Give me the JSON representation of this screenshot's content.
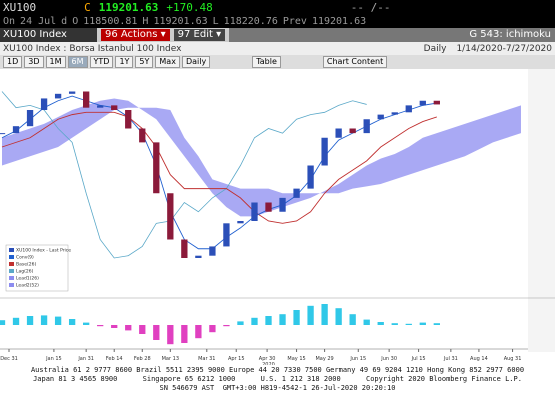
{
  "header": {
    "ticker": "XU100",
    "c_label": "C",
    "last": "119201.63",
    "change": "+170.48",
    "bidask": "-- /--",
    "row2": [
      "On",
      "24 Jul",
      "d",
      "O",
      "118500.81",
      "H",
      "119201.63",
      "L",
      "118220.76",
      "Prev",
      "119201.63"
    ]
  },
  "toolbar": {
    "security": "XU100 Index",
    "actions_num": "96",
    "actions": "Actions",
    "edit_num": "97",
    "edit": "Edit",
    "page": "G 543: ichimoku"
  },
  "subtitle": {
    "name": "XU100 Index : Borsa Istanbul 100 Index",
    "frequency": "Daily",
    "range": "1/14/2020-7/27/2020"
  },
  "buttons": [
    "1D",
    "3D",
    "1M",
    "6M",
    "YTD",
    "1Y",
    "5Y",
    "Max"
  ],
  "selected_button": 3,
  "period": "Daily",
  "table": "Table",
  "chart_content": "Chart Content",
  "chart_data": {
    "type": "candlestick",
    "xlim": [
      0,
      37.5
    ],
    "ylim": [
      78000,
      126000
    ],
    "xticks": [
      {
        "value": 0.5,
        "label": "Dec 31"
      },
      {
        "value": 3.7,
        "label": "Jan 15"
      },
      {
        "value": 6,
        "label": "Jan 31"
      },
      {
        "value": 8,
        "label": "Feb 14"
      },
      {
        "value": 10,
        "label": "Feb 28"
      },
      {
        "value": 12,
        "label": "Mar 13"
      },
      {
        "value": 14.6,
        "label": "Mar 31"
      },
      {
        "value": 16.7,
        "label": "Apr 15"
      },
      {
        "value": 18.9,
        "label": "Apr 30"
      },
      {
        "value": 21,
        "label": "May 15"
      },
      {
        "value": 23,
        "label": "May 29"
      },
      {
        "value": 25.4,
        "label": "Jun 15"
      },
      {
        "value": 27.6,
        "label": "Jun 30"
      },
      {
        "value": 29.7,
        "label": "Jul 15"
      },
      {
        "value": 32,
        "label": "Jul 31"
      },
      {
        "value": 34,
        "label": "Aug 14"
      },
      {
        "value": 36.4,
        "label": "Aug 31"
      }
    ],
    "year_label": "2020",
    "close": [
      113000,
      114500,
      118000,
      120500,
      121500,
      122000,
      118500,
      119000,
      118000,
      114000,
      111000,
      100000,
      90000,
      86000,
      86500,
      88500,
      93500,
      94000,
      98000,
      96000,
      99000,
      101000,
      106000,
      112000,
      114000,
      113000,
      116000,
      117000,
      117500,
      119000,
      120000,
      119201.63
    ],
    "up_color": "#2b4fb8",
    "down_color": "#8b1a3a",
    "legend": [
      "XU100 Index - Last Price",
      "Conv(9)",
      "Base(26)",
      "Lag(26)",
      "Lead1(26)",
      "Lead2(52)"
    ],
    "conv": {
      "color": "#2060d0",
      "values": [
        112000,
        113500,
        116000,
        118500,
        120000,
        121000,
        120000,
        119000,
        118500,
        116500,
        113000,
        106000,
        96000,
        90000,
        88000,
        88000,
        90500,
        92500,
        95000,
        96500,
        97500,
        99500,
        103000,
        108000,
        111500,
        113000,
        114500,
        116000,
        117000,
        118000,
        119000,
        119500
      ]
    },
    "base": {
      "color": "#c03030",
      "values": [
        110000,
        111000,
        112000,
        114000,
        116000,
        117000,
        117500,
        117500,
        117500,
        116500,
        114000,
        110000,
        104000,
        101000,
        101000,
        101000,
        101000,
        99000,
        96000,
        94000,
        93500,
        94000,
        96000,
        100000,
        103000,
        105000,
        107000,
        110000,
        112000,
        114000,
        115500,
        116500
      ]
    },
    "lag": {
      "color": "#5aa8c8",
      "values": [
        122000,
        118500,
        119000,
        118000,
        114000,
        111000,
        100000,
        90000,
        86000,
        86500,
        88500,
        93500,
        94000,
        98000,
        96000,
        99000,
        101000,
        106000,
        112000,
        114000,
        113000,
        116000,
        117000,
        117500,
        119000,
        120000,
        119201.63
      ]
    },
    "cloud_color": "#8c8cf0",
    "lead1": [
      112000,
      113000,
      114000,
      115000,
      116500,
      118000,
      119000,
      120000,
      120500,
      120000,
      118000,
      116000,
      112000,
      108000,
      104000,
      100000,
      97000,
      95000,
      95000,
      96000,
      97000,
      98000,
      99000,
      100500,
      102000,
      104000,
      106000,
      107500,
      108500,
      110000,
      112000,
      113000,
      114000,
      115000,
      116000,
      117000,
      118000,
      119000
    ],
    "lead2": [
      106000,
      107000,
      108000,
      109000,
      110000,
      112000,
      114000,
      116000,
      118000,
      118500,
      118500,
      118500,
      118000,
      112000,
      108000,
      103000,
      102000,
      101000,
      101000,
      101000,
      100000,
      100000,
      100000,
      100000,
      100000,
      101000,
      101500,
      102000,
      103000,
      104000,
      105000,
      106000,
      107000,
      108000,
      109500,
      111000,
      112000,
      113000
    ],
    "macd": {
      "ylim": [
        -4000,
        4000
      ],
      "positive_color": "#30c8e8",
      "negative_color": "#e040c0",
      "values": [
        800,
        1200,
        1500,
        1600,
        1400,
        1000,
        400,
        -200,
        -500,
        -900,
        -1500,
        -2500,
        -3200,
        -3000,
        -2200,
        -1200,
        -200,
        600,
        1200,
        1500,
        1800,
        2500,
        3200,
        3500,
        2800,
        1800,
        900,
        500,
        300,
        200,
        400,
        300
      ]
    }
  },
  "footer": [
    "Australia 61 2 9777 8600 Brazil 5511 2395 9000 Europe 44 20 7330 7500 Germany 49 69 9204 1210 Hong Kong 852 2977 6000",
    "Japan 81 3 4565 8900      Singapore 65 6212 1000      U.S. 1 212 318 2000      Copyright 2020 Bloomberg Finance L.P.",
    "SN 546679 AST  GMT+3:00 H819-4542-1 26-Jul-2020 20:20:10"
  ]
}
